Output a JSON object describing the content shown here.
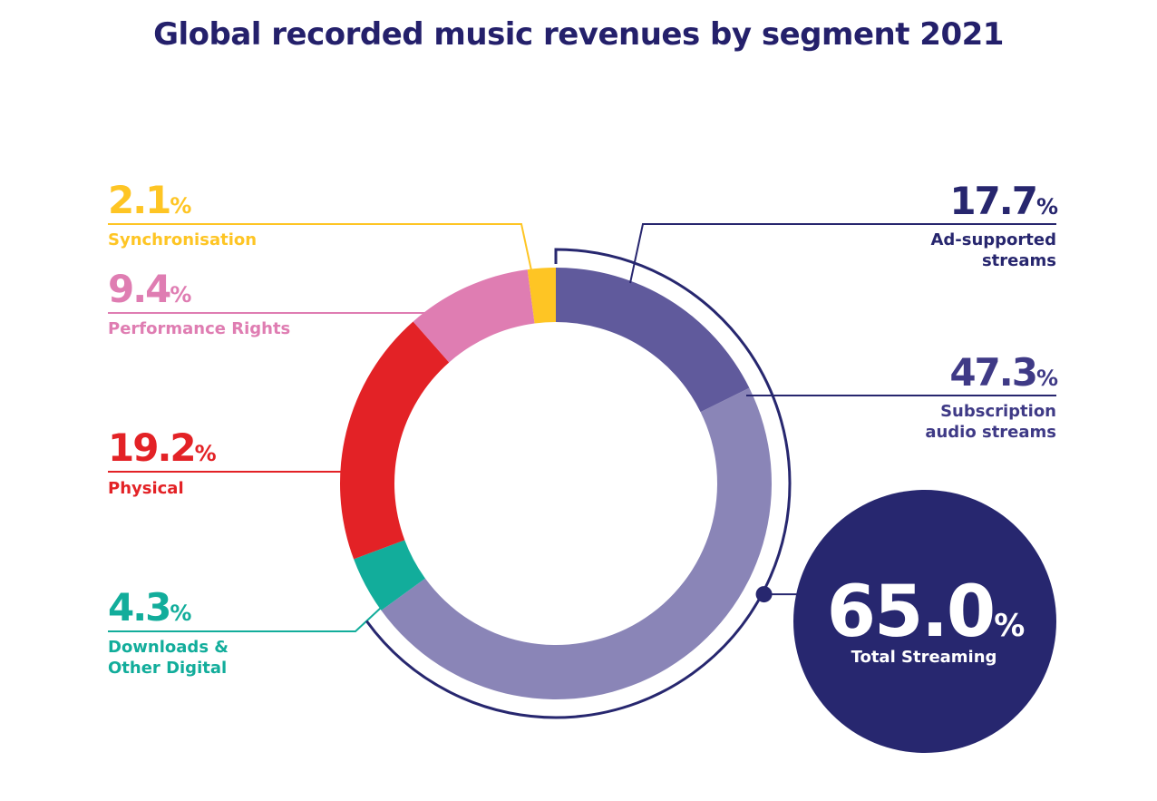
{
  "chart_data": {
    "type": "donut",
    "title": "Global recorded music revenues by segment 2021",
    "slices": [
      {
        "name": "Ad-supported streams",
        "label_lines": [
          "Ad-supported",
          "streams"
        ],
        "value": 17.7,
        "value_text": "17.7",
        "color": "#605a9c",
        "inner_color": "#27266e",
        "label_side": "right"
      },
      {
        "name": "Subscription audio streams",
        "label_lines": [
          "Subscription",
          "audio streams"
        ],
        "value": 47.3,
        "value_text": "47.3",
        "color": "#8a85b7",
        "inner_color": "#3f3a86",
        "label_side": "right"
      },
      {
        "name": "Downloads & Other Digital",
        "label_lines": [
          "Downloads &",
          "Other Digital"
        ],
        "value": 4.3,
        "value_text": "4.3",
        "color": "#12ad9b",
        "inner_color": "#12ad9b",
        "label_side": "left"
      },
      {
        "name": "Physical",
        "label_lines": [
          "Physical"
        ],
        "value": 19.2,
        "value_text": "19.2",
        "color": "#e32226",
        "inner_color": "#e32226",
        "label_side": "left"
      },
      {
        "name": "Performance Rights",
        "label_lines": [
          "Performance Rights"
        ],
        "value": 9.4,
        "value_text": "9.4",
        "color": "#df7db2",
        "inner_color": "#df7db2",
        "label_side": "left"
      },
      {
        "name": "Synchronisation",
        "label_lines": [
          "Synchronisation"
        ],
        "value": 2.1,
        "value_text": "2.1",
        "color": "#fec524",
        "inner_color": "#fec524",
        "label_side": "left"
      }
    ],
    "percent_sign": "%",
    "total": {
      "value_text": "65.0",
      "label": "Total Streaming",
      "color": "#27276f"
    }
  }
}
